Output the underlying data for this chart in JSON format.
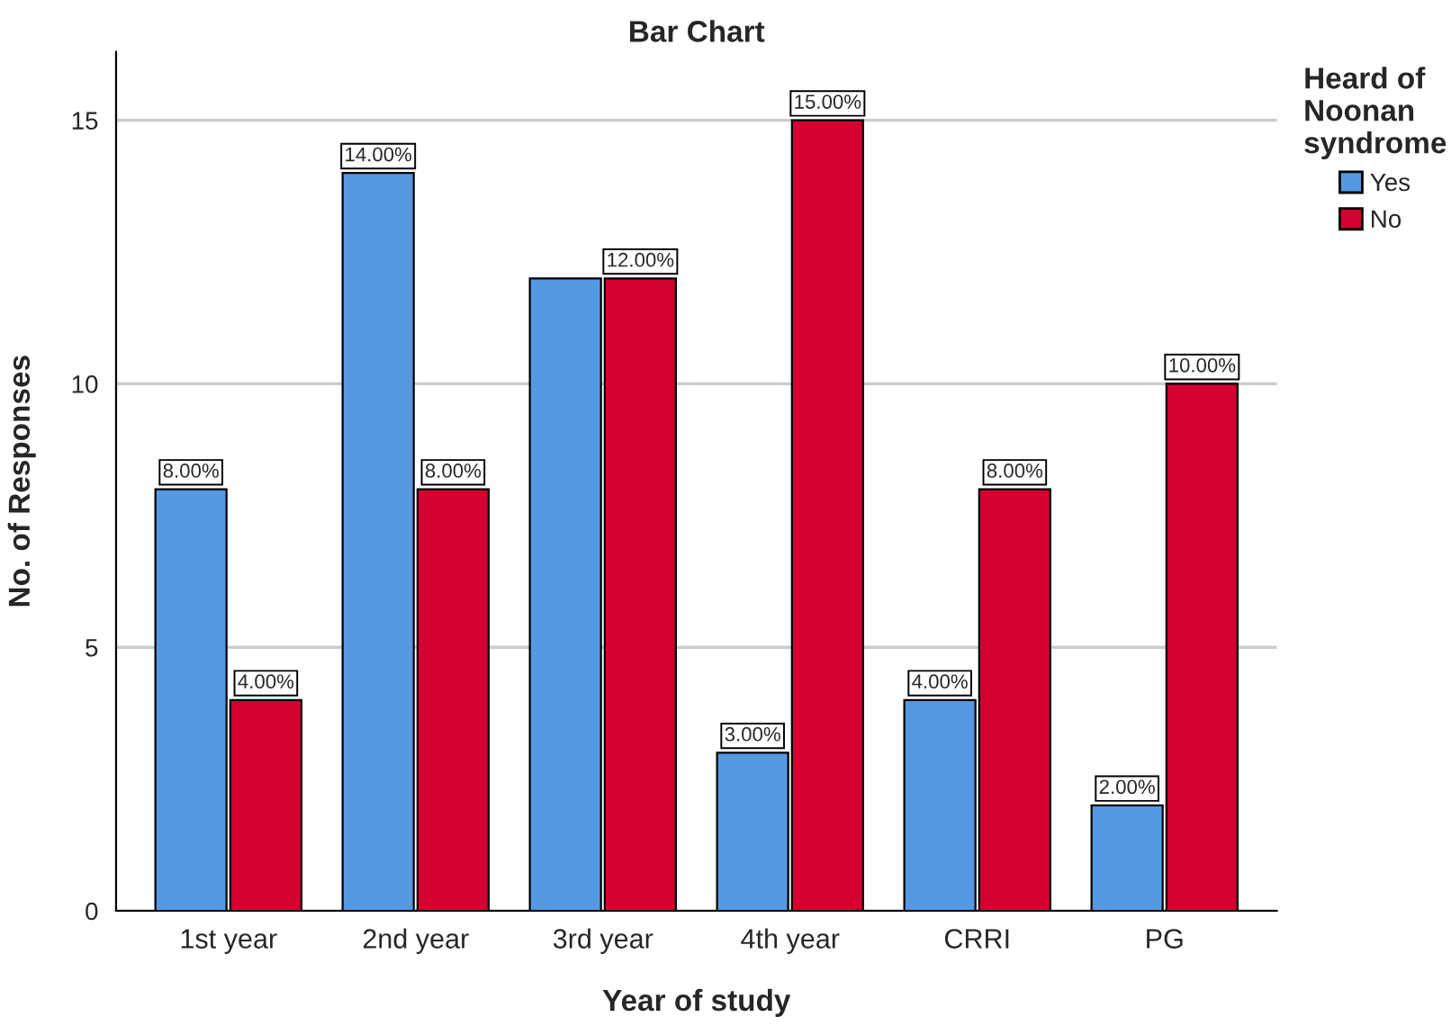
{
  "chart_data": {
    "type": "bar",
    "title": "Bar Chart",
    "xlabel": "Year of study",
    "ylabel": "No. of Responses",
    "legend_title": "Heard of\nNoonan\nsyndrome",
    "categories": [
      "1st year",
      "2nd year",
      "3rd year",
      "4th year",
      "CRRI",
      "PG"
    ],
    "series": [
      {
        "name": "Yes",
        "color": "#5599e3",
        "values": [
          8,
          14,
          12,
          3,
          4,
          2
        ],
        "value_labels": [
          "8.00%",
          "14.00%",
          null,
          "3.00%",
          "4.00%",
          "2.00%"
        ]
      },
      {
        "name": "No",
        "color": "#d30031",
        "values": [
          4,
          8,
          12,
          15,
          8,
          10
        ],
        "value_labels": [
          "4.00%",
          "8.00%",
          "12.00%",
          "15.00%",
          "8.00%",
          "10.00%"
        ]
      }
    ],
    "ylim": [
      0,
      16.3
    ],
    "yticks": [
      0,
      5,
      10,
      15
    ],
    "grid": "y",
    "legend": "top right"
  }
}
